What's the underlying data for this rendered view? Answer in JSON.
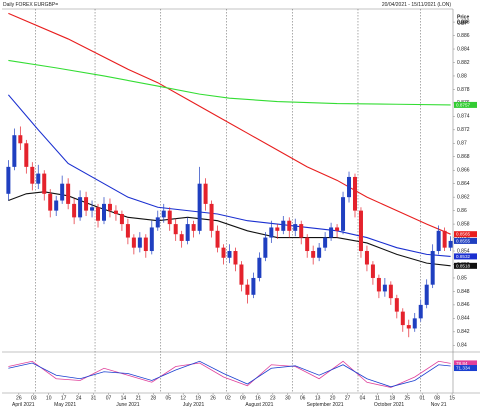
{
  "chart_data": {
    "type": "candlestick",
    "title": "Daily FOREX EURGBP=",
    "date_range": "20/04/2021 - 15/11/2021 (LON)",
    "y_label": "Price",
    "currency": "GBP",
    "up_color": "#1f3fc0",
    "down_color": "#e4222c",
    "xlim": [
      -0.9,
      74.4
    ],
    "ylim": [
      0.8393,
      0.8895
    ],
    "yticks": [
      0.888,
      0.886,
      0.884,
      0.882,
      0.88,
      0.878,
      0.876,
      0.874,
      0.872,
      0.87,
      0.868,
      0.866,
      0.864,
      0.862,
      0.86,
      0.858,
      0.856,
      0.854,
      0.852,
      0.85,
      0.848,
      0.846,
      0.844,
      0.842,
      0.84
    ],
    "xticks": [
      {
        "value": 1.75,
        "label": "26"
      },
      {
        "value": 4.25,
        "label": "03"
      },
      {
        "value": 6.75,
        "label": "10"
      },
      {
        "value": 9.25,
        "label": "17"
      },
      {
        "value": 11.75,
        "label": "24"
      },
      {
        "value": 14.25,
        "label": "31"
      },
      {
        "value": 16.75,
        "label": "07"
      },
      {
        "value": 19.25,
        "label": "14"
      },
      {
        "value": 21.75,
        "label": "21"
      },
      {
        "value": 24.25,
        "label": "28"
      },
      {
        "value": 26.75,
        "label": "05"
      },
      {
        "value": 29.25,
        "label": "12"
      },
      {
        "value": 31.75,
        "label": "19"
      },
      {
        "value": 34.25,
        "label": "26"
      },
      {
        "value": 36.75,
        "label": "02"
      },
      {
        "value": 39.25,
        "label": "09"
      },
      {
        "value": 41.75,
        "label": "16"
      },
      {
        "value": 44.25,
        "label": "23"
      },
      {
        "value": 46.75,
        "label": "30"
      },
      {
        "value": 49.25,
        "label": "06"
      },
      {
        "value": 51.75,
        "label": "13"
      },
      {
        "value": 54.25,
        "label": "20"
      },
      {
        "value": 56.75,
        "label": "27"
      },
      {
        "value": 59.25,
        "label": "04"
      },
      {
        "value": 61.75,
        "label": "11"
      },
      {
        "value": 64.25,
        "label": "18"
      },
      {
        "value": 66.75,
        "label": "25"
      },
      {
        "value": 69.25,
        "label": "01"
      },
      {
        "value": 71.75,
        "label": "08"
      },
      {
        "value": 74.25,
        "label": "15"
      }
    ],
    "months": [
      {
        "value": 2.5,
        "label": "April 2021"
      },
      {
        "value": 9.5,
        "label": "May 2021"
      },
      {
        "value": 20,
        "label": "June 2021"
      },
      {
        "value": 31,
        "label": "July 2021"
      },
      {
        "value": 42,
        "label": "August 2021"
      },
      {
        "value": 53,
        "label": "September 2021"
      },
      {
        "value": 63.7,
        "label": "October 2021"
      },
      {
        "value": 72,
        "label": "Nov 21"
      }
    ],
    "month_starts": [
      4.5,
      14.5,
      25.5,
      36.5,
      47.5,
      58.5,
      69
    ],
    "candles": [
      [
        0.8625,
        0.8675,
        0.8615,
        0.8665
      ],
      [
        0.8665,
        0.8722,
        0.866,
        0.8712
      ],
      [
        0.8712,
        0.8725,
        0.869,
        0.87
      ],
      [
        0.87,
        0.8705,
        0.8655,
        0.8665
      ],
      [
        0.8665,
        0.8672,
        0.863,
        0.864
      ],
      [
        0.864,
        0.8668,
        0.8632,
        0.8655
      ],
      [
        0.8655,
        0.866,
        0.8615,
        0.8625
      ],
      [
        0.8625,
        0.8632,
        0.859,
        0.86
      ],
      [
        0.86,
        0.8622,
        0.8592,
        0.8615
      ],
      [
        0.8615,
        0.8652,
        0.861,
        0.864
      ],
      [
        0.864,
        0.8648,
        0.8602,
        0.861
      ],
      [
        0.861,
        0.8618,
        0.858,
        0.859
      ],
      [
        0.859,
        0.863,
        0.8585,
        0.862
      ],
      [
        0.862,
        0.8628,
        0.8592,
        0.86
      ],
      [
        0.86,
        0.8615,
        0.859,
        0.8605
      ],
      [
        0.8605,
        0.861,
        0.8575,
        0.8585
      ],
      [
        0.8585,
        0.862,
        0.858,
        0.861
      ],
      [
        0.861,
        0.8618,
        0.859,
        0.86
      ],
      [
        0.86,
        0.8608,
        0.8585,
        0.8595
      ],
      [
        0.8595,
        0.86,
        0.857,
        0.858
      ],
      [
        0.858,
        0.8588,
        0.855,
        0.856
      ],
      [
        0.856,
        0.8565,
        0.8535,
        0.8545
      ],
      [
        0.8545,
        0.8568,
        0.8538,
        0.856
      ],
      [
        0.856,
        0.8565,
        0.853,
        0.854
      ],
      [
        0.854,
        0.8585,
        0.8535,
        0.8575
      ],
      [
        0.8575,
        0.86,
        0.857,
        0.859
      ],
      [
        0.859,
        0.861,
        0.8582,
        0.86
      ],
      [
        0.86,
        0.8605,
        0.857,
        0.858
      ],
      [
        0.858,
        0.8588,
        0.8555,
        0.8565
      ],
      [
        0.8565,
        0.857,
        0.8545,
        0.8555
      ],
      [
        0.8555,
        0.859,
        0.855,
        0.858
      ],
      [
        0.858,
        0.8585,
        0.856,
        0.857
      ],
      [
        0.857,
        0.8665,
        0.8565,
        0.864
      ],
      [
        0.864,
        0.8648,
        0.86,
        0.861
      ],
      [
        0.861,
        0.8615,
        0.856,
        0.857
      ],
      [
        0.857,
        0.8578,
        0.8538,
        0.8545
      ],
      [
        0.8545,
        0.855,
        0.852,
        0.853
      ],
      [
        0.853,
        0.855,
        0.8522,
        0.854
      ],
      [
        0.854,
        0.8545,
        0.851,
        0.852
      ],
      [
        0.852,
        0.8525,
        0.848,
        0.849
      ],
      [
        0.849,
        0.8498,
        0.8462,
        0.8475
      ],
      [
        0.8475,
        0.8508,
        0.847,
        0.85
      ],
      [
        0.85,
        0.8538,
        0.8495,
        0.853
      ],
      [
        0.853,
        0.8568,
        0.8525,
        0.856
      ],
      [
        0.856,
        0.8585,
        0.8552,
        0.8575
      ],
      [
        0.8575,
        0.858,
        0.8558,
        0.857
      ],
      [
        0.857,
        0.8592,
        0.8565,
        0.8585
      ],
      [
        0.8585,
        0.859,
        0.856,
        0.857
      ],
      [
        0.857,
        0.8588,
        0.8562,
        0.858
      ],
      [
        0.858,
        0.8585,
        0.855,
        0.856
      ],
      [
        0.856,
        0.8565,
        0.853,
        0.854
      ],
      [
        0.854,
        0.8548,
        0.852,
        0.853
      ],
      [
        0.853,
        0.8552,
        0.8525,
        0.8545
      ],
      [
        0.8545,
        0.8568,
        0.854,
        0.856
      ],
      [
        0.856,
        0.8582,
        0.8555,
        0.8575
      ],
      [
        0.8575,
        0.858,
        0.856,
        0.857
      ],
      [
        0.857,
        0.8628,
        0.8565,
        0.862
      ],
      [
        0.862,
        0.8658,
        0.8612,
        0.865
      ],
      [
        0.865,
        0.8655,
        0.859,
        0.86
      ],
      [
        0.86,
        0.8605,
        0.853,
        0.854
      ],
      [
        0.854,
        0.8548,
        0.851,
        0.852
      ],
      [
        0.852,
        0.8525,
        0.849,
        0.85
      ],
      [
        0.85,
        0.8505,
        0.847,
        0.848
      ],
      [
        0.848,
        0.85,
        0.8472,
        0.849
      ],
      [
        0.849,
        0.8495,
        0.846,
        0.847
      ],
      [
        0.847,
        0.8475,
        0.844,
        0.845
      ],
      [
        0.845,
        0.8455,
        0.842,
        0.843
      ],
      [
        0.843,
        0.8438,
        0.8412,
        0.8425
      ],
      [
        0.8425,
        0.8448,
        0.842,
        0.844
      ],
      [
        0.844,
        0.8468,
        0.8435,
        0.846
      ],
      [
        0.846,
        0.8498,
        0.8455,
        0.849
      ],
      [
        0.849,
        0.855,
        0.8485,
        0.854
      ],
      [
        0.854,
        0.8578,
        0.8535,
        0.857
      ],
      [
        0.857,
        0.8575,
        0.854,
        0.8545
      ],
      [
        0.8545,
        0.8562,
        0.854,
        0.8555
      ]
    ],
    "series": [
      {
        "color": "#e81e1e",
        "x": [
          0,
          10,
          20,
          25,
          30,
          35,
          40,
          45,
          50,
          55,
          60,
          65,
          70,
          74
        ],
        "values": [
          0.8893,
          0.8855,
          0.881,
          0.879,
          0.8765,
          0.874,
          0.8715,
          0.869,
          0.8665,
          0.8645,
          0.862,
          0.86,
          0.858,
          0.8565
        ]
      },
      {
        "color": "#33dd33",
        "x": [
          0,
          8,
          16,
          25,
          32,
          37,
          45,
          55,
          65,
          74
        ],
        "values": [
          0.8823,
          0.8812,
          0.88,
          0.8785,
          0.8773,
          0.8767,
          0.8762,
          0.8759,
          0.8758,
          0.8757
        ]
      },
      {
        "color": "#1a2fd0",
        "x": [
          0,
          5,
          10,
          15,
          20,
          25,
          30,
          35,
          40,
          45,
          50,
          55,
          60,
          65,
          70,
          74
        ],
        "values": [
          0.8772,
          0.872,
          0.867,
          0.8645,
          0.862,
          0.8605,
          0.86,
          0.8595,
          0.8585,
          0.858,
          0.8575,
          0.857,
          0.856,
          0.8545,
          0.8535,
          0.8532
        ]
      },
      {
        "color": "#111111",
        "x": [
          0,
          3,
          6,
          10,
          15,
          20,
          25,
          30,
          35,
          40,
          45,
          50,
          55,
          60,
          65,
          70,
          74
        ],
        "values": [
          0.8615,
          0.8625,
          0.8628,
          0.8622,
          0.8605,
          0.859,
          0.8585,
          0.859,
          0.8585,
          0.857,
          0.856,
          0.856,
          0.856,
          0.8552,
          0.8535,
          0.8522,
          0.8518
        ]
      }
    ],
    "price_tags": [
      {
        "value": 0.8757,
        "label": "0.8757",
        "color": "#33cc33"
      },
      {
        "value": 0.8565,
        "label": "0.8565",
        "color": "#e81e1e"
      },
      {
        "value": 0.8555,
        "label": "0.8555",
        "color": "#1f3fc0"
      },
      {
        "value": 0.8532,
        "label": "0.8532",
        "color": "#1a2fd0"
      },
      {
        "value": 0.8518,
        "label": "0.8518",
        "color": "#111111"
      }
    ],
    "stochastic": {
      "ylim": [
        0,
        100
      ],
      "x": [
        0,
        4,
        8,
        12,
        16,
        20,
        24,
        28,
        32,
        36,
        40,
        44,
        48,
        52,
        56,
        60,
        64,
        68,
        72,
        74
      ],
      "series": [
        {
          "color": "#e0409a",
          "values": [
            70,
            85,
            35,
            30,
            65,
            45,
            25,
            70,
            80,
            40,
            15,
            75,
            70,
            35,
            85,
            25,
            10,
            40,
            85,
            78.84
          ],
          "value_label": "78.84"
        },
        {
          "color": "#1a3fd0",
          "values": [
            65,
            80,
            45,
            35,
            55,
            50,
            30,
            60,
            85,
            50,
            20,
            65,
            72,
            45,
            75,
            35,
            12,
            30,
            75,
            71.334
          ],
          "value_label": "71.334"
        }
      ]
    }
  }
}
